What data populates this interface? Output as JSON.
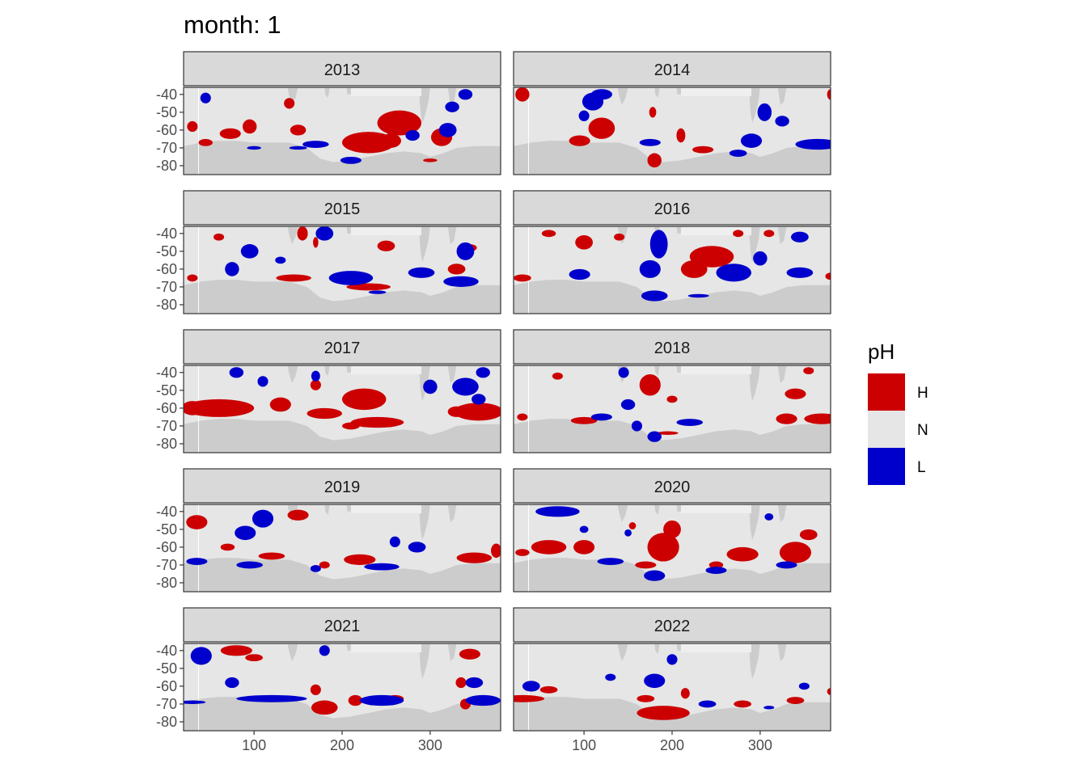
{
  "chart_data": {
    "type": "heatmap",
    "title": "month: 1",
    "facet_variable": "year",
    "xlabel": "",
    "ylabel": "",
    "xlim": [
      20,
      380
    ],
    "ylim": [
      -85,
      -36
    ],
    "x_ticks": [
      100,
      200,
      300
    ],
    "x_tick_labels": [
      "100",
      "200",
      "300"
    ],
    "y_ticks": [
      -40,
      -50,
      -60,
      -70,
      -80
    ],
    "y_tick_labels": [
      "-40",
      "-50",
      "-60",
      "-70",
      "-80"
    ],
    "background": {
      "land_color": "#cccccc",
      "ocean_neutral_color": "#e6e6e6",
      "panel_border_color": "#333333",
      "strip_fill": "#d9d9d9"
    },
    "legend": {
      "title": "pH",
      "entries": [
        {
          "label": "H",
          "color": "#cc0000"
        },
        {
          "label": "N",
          "color": "#e6e6e6"
        },
        {
          "label": "L",
          "color": "#0000cc"
        }
      ]
    },
    "panels": [
      {
        "year": "2013",
        "H": [
          [
            30,
            -58,
            6,
            3
          ],
          [
            45,
            -67,
            8,
            2
          ],
          [
            95,
            -58,
            8,
            4
          ],
          [
            73,
            -62,
            12,
            3
          ],
          [
            150,
            -60,
            9,
            3
          ],
          [
            265,
            -56,
            25,
            7
          ],
          [
            230,
            -67,
            30,
            6
          ],
          [
            255,
            -66,
            12,
            4
          ],
          [
            313,
            -64,
            12,
            5
          ],
          [
            140,
            -45,
            6,
            3
          ],
          [
            220,
            -68,
            8,
            3
          ],
          [
            300,
            -77,
            8,
            1
          ]
        ],
        "L": [
          [
            45,
            -42,
            6,
            3
          ],
          [
            170,
            -68,
            15,
            2
          ],
          [
            280,
            -63,
            8,
            3
          ],
          [
            325,
            -47,
            8,
            3
          ],
          [
            340,
            -40,
            8,
            3
          ],
          [
            320,
            -60,
            10,
            4
          ],
          [
            210,
            -77,
            12,
            2
          ],
          [
            150,
            -70,
            10,
            1
          ],
          [
            100,
            -70,
            8,
            1
          ]
        ]
      },
      {
        "year": "2014",
        "H": [
          [
            120,
            -59,
            15,
            6
          ],
          [
            95,
            -66,
            12,
            3
          ],
          [
            180,
            -77,
            8,
            4
          ],
          [
            210,
            -63,
            5,
            4
          ],
          [
            235,
            -71,
            12,
            2
          ],
          [
            30,
            -40,
            8,
            4
          ],
          [
            178,
            -50,
            4,
            3
          ],
          [
            380,
            -40,
            4,
            3
          ]
        ],
        "L": [
          [
            110,
            -44,
            12,
            5
          ],
          [
            120,
            -40,
            12,
            3
          ],
          [
            365,
            -68,
            25,
            3
          ],
          [
            305,
            -50,
            8,
            5
          ],
          [
            290,
            -66,
            12,
            4
          ],
          [
            325,
            -55,
            8,
            3
          ],
          [
            175,
            -67,
            12,
            2
          ],
          [
            275,
            -73,
            10,
            2
          ],
          [
            100,
            -52,
            6,
            3
          ]
        ]
      },
      {
        "year": "2015",
        "H": [
          [
            155,
            -40,
            6,
            4
          ],
          [
            170,
            -45,
            3,
            3
          ],
          [
            30,
            -65,
            6,
            2
          ],
          [
            145,
            -65,
            20,
            2
          ],
          [
            250,
            -47,
            10,
            3
          ],
          [
            230,
            -70,
            25,
            2
          ],
          [
            330,
            -60,
            10,
            3
          ],
          [
            345,
            -48,
            8,
            2
          ],
          [
            60,
            -42,
            6,
            2
          ]
        ],
        "L": [
          [
            180,
            -40,
            10,
            4
          ],
          [
            210,
            -65,
            25,
            4
          ],
          [
            335,
            -67,
            20,
            3
          ],
          [
            290,
            -62,
            15,
            3
          ],
          [
            75,
            -60,
            8,
            4
          ],
          [
            95,
            -50,
            10,
            4
          ],
          [
            130,
            -55,
            6,
            2
          ],
          [
            340,
            -50,
            10,
            5
          ],
          [
            240,
            -73,
            10,
            1
          ]
        ]
      },
      {
        "year": "2016",
        "H": [
          [
            245,
            -53,
            25,
            6
          ],
          [
            225,
            -60,
            15,
            5
          ],
          [
            100,
            -45,
            10,
            4
          ],
          [
            140,
            -42,
            6,
            2
          ],
          [
            60,
            -40,
            8,
            2
          ],
          [
            30,
            -65,
            10,
            2
          ],
          [
            380,
            -64,
            6,
            2
          ],
          [
            275,
            -40,
            6,
            2
          ],
          [
            310,
            -40,
            6,
            2
          ]
        ],
        "L": [
          [
            185,
            -46,
            10,
            8
          ],
          [
            175,
            -60,
            12,
            5
          ],
          [
            270,
            -62,
            20,
            5
          ],
          [
            345,
            -62,
            15,
            3
          ],
          [
            300,
            -54,
            8,
            4
          ],
          [
            95,
            -63,
            12,
            3
          ],
          [
            180,
            -75,
            15,
            3
          ],
          [
            345,
            -42,
            10,
            3
          ],
          [
            230,
            -75,
            12,
            1
          ]
        ]
      },
      {
        "year": "2017",
        "H": [
          [
            60,
            -60,
            40,
            5
          ],
          [
            30,
            -60,
            12,
            4
          ],
          [
            130,
            -58,
            12,
            4
          ],
          [
            225,
            -55,
            25,
            6
          ],
          [
            180,
            -63,
            20,
            3
          ],
          [
            240,
            -68,
            30,
            3
          ],
          [
            355,
            -62,
            28,
            5
          ],
          [
            330,
            -62,
            10,
            3
          ],
          [
            170,
            -47,
            6,
            3
          ],
          [
            210,
            -70,
            10,
            2
          ]
        ],
        "L": [
          [
            80,
            -40,
            8,
            3
          ],
          [
            170,
            -42,
            5,
            3
          ],
          [
            340,
            -48,
            15,
            5
          ],
          [
            355,
            -55,
            8,
            3
          ],
          [
            300,
            -48,
            8,
            4
          ],
          [
            110,
            -45,
            6,
            3
          ],
          [
            360,
            -40,
            8,
            3
          ]
        ],
        "H2": []
      },
      {
        "year": "2018",
        "H": [
          [
            175,
            -47,
            12,
            6
          ],
          [
            200,
            -55,
            6,
            2
          ],
          [
            370,
            -66,
            20,
            3
          ],
          [
            330,
            -66,
            12,
            3
          ],
          [
            340,
            -52,
            12,
            3
          ],
          [
            70,
            -42,
            6,
            2
          ],
          [
            100,
            -67,
            15,
            2
          ],
          [
            30,
            -65,
            6,
            2
          ],
          [
            195,
            -74,
            12,
            1
          ],
          [
            355,
            -39,
            6,
            2
          ]
        ],
        "L": [
          [
            160,
            -70,
            6,
            3
          ],
          [
            220,
            -68,
            15,
            2
          ],
          [
            180,
            -76,
            8,
            3
          ],
          [
            120,
            -65,
            12,
            2
          ],
          [
            145,
            -40,
            6,
            3
          ],
          [
            150,
            -58,
            8,
            3
          ]
        ],
        "H2": []
      },
      {
        "year": "2019",
        "H": [
          [
            150,
            -42,
            12,
            3
          ],
          [
            35,
            -46,
            12,
            4
          ],
          [
            220,
            -67,
            18,
            3
          ],
          [
            350,
            -66,
            20,
            3
          ],
          [
            375,
            -62,
            6,
            4
          ],
          [
            70,
            -60,
            8,
            2
          ],
          [
            120,
            -65,
            15,
            2
          ],
          [
            180,
            -70,
            6,
            2
          ],
          [
            95,
            -52,
            5,
            2
          ]
        ],
        "L": [
          [
            110,
            -44,
            12,
            5
          ],
          [
            90,
            -52,
            12,
            4
          ],
          [
            35,
            -68,
            12,
            2
          ],
          [
            95,
            -70,
            15,
            2
          ],
          [
            245,
            -71,
            20,
            2
          ],
          [
            285,
            -60,
            10,
            3
          ],
          [
            170,
            -72,
            6,
            2
          ],
          [
            260,
            -57,
            6,
            3
          ]
        ],
        "H2": []
      },
      {
        "year": "2020",
        "H": [
          [
            190,
            -60,
            18,
            8
          ],
          [
            200,
            -50,
            10,
            5
          ],
          [
            170,
            -70,
            12,
            2
          ],
          [
            280,
            -64,
            18,
            4
          ],
          [
            340,
            -63,
            18,
            6
          ],
          [
            355,
            -53,
            10,
            3
          ],
          [
            60,
            -60,
            20,
            4
          ],
          [
            100,
            -60,
            12,
            4
          ],
          [
            30,
            -63,
            8,
            2
          ],
          [
            155,
            -48,
            4,
            2
          ],
          [
            250,
            -70,
            8,
            2
          ]
        ],
        "L": [
          [
            70,
            -40,
            25,
            3
          ],
          [
            180,
            -76,
            12,
            3
          ],
          [
            250,
            -73,
            12,
            2
          ],
          [
            130,
            -68,
            15,
            2
          ],
          [
            150,
            -52,
            4,
            2
          ],
          [
            310,
            -43,
            5,
            2
          ],
          [
            330,
            -70,
            12,
            2
          ],
          [
            100,
            -50,
            5,
            2
          ]
        ],
        "H2": []
      },
      {
        "year": "2021",
        "H": [
          [
            80,
            -40,
            18,
            3
          ],
          [
            100,
            -44,
            10,
            2
          ],
          [
            345,
            -42,
            12,
            3
          ],
          [
            335,
            -58,
            6,
            3
          ],
          [
            180,
            -72,
            15,
            4
          ],
          [
            215,
            -68,
            8,
            3
          ],
          [
            170,
            -62,
            6,
            3
          ],
          [
            260,
            -67,
            10,
            2
          ],
          [
            340,
            -70,
            6,
            3
          ]
        ],
        "L": [
          [
            40,
            -43,
            12,
            5
          ],
          [
            120,
            -67,
            40,
            2
          ],
          [
            245,
            -68,
            25,
            3
          ],
          [
            360,
            -68,
            20,
            3
          ],
          [
            350,
            -58,
            10,
            3
          ],
          [
            30,
            -69,
            15,
            1
          ],
          [
            75,
            -58,
            8,
            3
          ],
          [
            180,
            -40,
            6,
            3
          ]
        ],
        "H2": []
      },
      {
        "year": "2022",
        "H": [
          [
            190,
            -75,
            30,
            4
          ],
          [
            170,
            -67,
            10,
            2
          ],
          [
            215,
            -64,
            5,
            3
          ],
          [
            30,
            -67,
            25,
            2
          ],
          [
            280,
            -70,
            10,
            2
          ],
          [
            340,
            -68,
            10,
            2
          ],
          [
            60,
            -62,
            10,
            2
          ],
          [
            380,
            -63,
            4,
            2
          ]
        ],
        "L": [
          [
            180,
            -57,
            12,
            4
          ],
          [
            40,
            -60,
            10,
            3
          ],
          [
            200,
            -45,
            6,
            3
          ],
          [
            240,
            -70,
            10,
            2
          ],
          [
            350,
            -60,
            6,
            2
          ],
          [
            310,
            -72,
            6,
            1
          ],
          [
            130,
            -55,
            6,
            2
          ]
        ],
        "H2": []
      }
    ]
  }
}
